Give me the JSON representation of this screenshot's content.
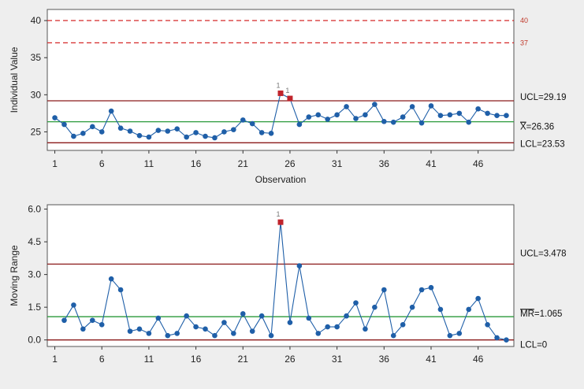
{
  "chart_data": [
    {
      "type": "line",
      "title": "",
      "xlabel": "Observation",
      "ylabel": "Individual Value",
      "ylim": [
        22.5,
        41.5
      ],
      "yticks": [
        25,
        30,
        35,
        40
      ],
      "xticks": [
        1,
        6,
        11,
        16,
        21,
        26,
        31,
        36,
        41,
        46
      ],
      "x": [
        1,
        2,
        3,
        4,
        5,
        6,
        7,
        8,
        9,
        10,
        11,
        12,
        13,
        14,
        15,
        16,
        17,
        18,
        19,
        20,
        21,
        22,
        23,
        24,
        25,
        26,
        27,
        28,
        29,
        30,
        31,
        32,
        33,
        34,
        35,
        36,
        37,
        38,
        39,
        40,
        41,
        42,
        43,
        44,
        45,
        46,
        47,
        48,
        49
      ],
      "series": [
        {
          "values": [
            26.9,
            26.0,
            24.4,
            24.8,
            25.7,
            25.0,
            27.8,
            25.5,
            25.1,
            24.5,
            24.3,
            25.2,
            25.1,
            25.4,
            24.3,
            24.9,
            24.4,
            24.2,
            25.0,
            25.3,
            26.6,
            26.1,
            24.9,
            24.8,
            30.2,
            29.5,
            26.0,
            27.0,
            27.3,
            26.7,
            27.3,
            28.4,
            26.8,
            27.3,
            28.7,
            26.4,
            26.3,
            27.0,
            28.4,
            26.2,
            28.5,
            27.2,
            27.3,
            27.5,
            26.3,
            28.1,
            27.5,
            27.2,
            27.2
          ],
          "color": "#1f5fa8",
          "flagged": [
            25,
            26
          ]
        }
      ],
      "limits": {
        "ucl": 29.19,
        "center": 26.36,
        "lcl": 23.53,
        "ucl_label": "UCL=29.19",
        "center_label_bar": "X",
        "center_label_rest": "=26.36",
        "lcl_label": "LCL=23.53"
      },
      "spec_lines": [
        {
          "value": 40,
          "label": "40"
        },
        {
          "value": 37,
          "label": "37"
        }
      ],
      "flag_text": "1"
    },
    {
      "type": "line",
      "title": "",
      "xlabel": "",
      "ylabel": "Moving Range",
      "ylim": [
        -0.3,
        6.2
      ],
      "yticks": [
        0.0,
        1.5,
        3.0,
        4.5,
        6.0
      ],
      "yticklabels": [
        "0.0",
        "1.5",
        "3.0",
        "4.5",
        "6.0"
      ],
      "xticks": [
        1,
        6,
        11,
        16,
        21,
        26,
        31,
        36,
        41,
        46
      ],
      "x": [
        2,
        3,
        4,
        5,
        6,
        7,
        8,
        9,
        10,
        11,
        12,
        13,
        14,
        15,
        16,
        17,
        18,
        19,
        20,
        21,
        22,
        23,
        24,
        25,
        26,
        27,
        28,
        29,
        30,
        31,
        32,
        33,
        34,
        35,
        36,
        37,
        38,
        39,
        40,
        41,
        42,
        43,
        44,
        45,
        46,
        47,
        48,
        49
      ],
      "series": [
        {
          "values": [
            0.9,
            1.6,
            0.5,
            0.9,
            0.7,
            2.8,
            2.3,
            0.4,
            0.5,
            0.3,
            1.0,
            0.2,
            0.3,
            1.1,
            0.6,
            0.5,
            0.2,
            0.8,
            0.3,
            1.2,
            0.4,
            1.1,
            0.2,
            5.4,
            0.8,
            3.4,
            1.0,
            0.3,
            0.6,
            0.6,
            1.1,
            1.7,
            0.5,
            1.5,
            2.3,
            0.2,
            0.7,
            1.5,
            2.3,
            2.4,
            1.4,
            0.2,
            0.3,
            1.4,
            1.9,
            0.7,
            0.1,
            0.0
          ],
          "color": "#1f5fa8",
          "flagged": [
            25
          ]
        }
      ],
      "limits": {
        "ucl": 3.478,
        "center": 1.065,
        "lcl": 0,
        "ucl_label": "UCL=3.478",
        "center_label_bar": "MR",
        "center_label_rest": "=1.065",
        "lcl_label": "LCL=0"
      },
      "flag_text": "1"
    }
  ],
  "colors": {
    "background": "#eeeeee",
    "plot_background": "#ffffff",
    "data": "#1f5fa8",
    "limit": "#8b1a1a",
    "center": "#2a9a3a",
    "spec": "#d62828",
    "flag": "#c0242c"
  }
}
